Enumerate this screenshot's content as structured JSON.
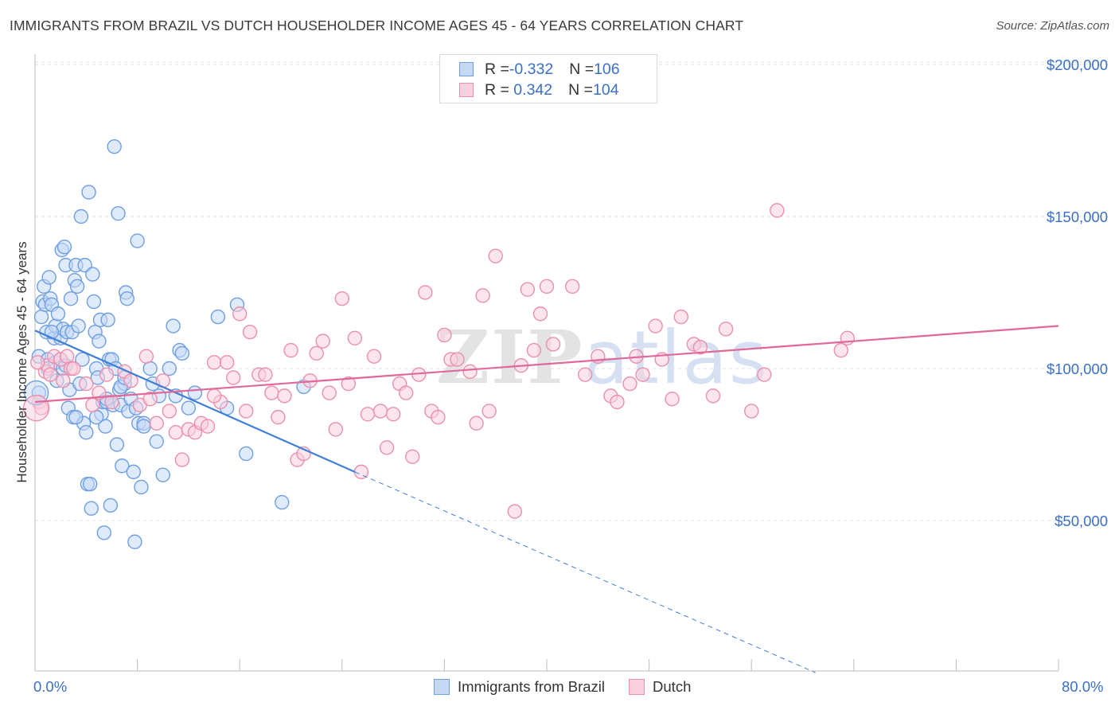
{
  "title": "IMMIGRANTS FROM BRAZIL VS DUTCH HOUSEHOLDER INCOME AGES 45 - 64 YEARS CORRELATION CHART",
  "source": "Source: ZipAtlas.com",
  "watermark": {
    "zip": "ZIP",
    "atlas": "atlas"
  },
  "legend": {
    "rows": [
      {
        "r_label": "R = ",
        "r_value": "-0.332",
        "n_label": "N = ",
        "n_value": "106",
        "color": "#6f9fe0",
        "fill": "#c5d9f5"
      },
      {
        "r_label": "R = ",
        "r_value": " 0.342",
        "n_label": "N = ",
        "n_value": "104",
        "color": "#ea8fae",
        "fill": "#f9d0de"
      }
    ]
  },
  "bottom_legend": [
    {
      "label": "Immigrants from Brazil",
      "color": "#6f9fe0",
      "fill": "#c5d9f5"
    },
    {
      "label": "Dutch",
      "color": "#ea8fae",
      "fill": "#f9d0de"
    }
  ],
  "chart_data": {
    "type": "scatter",
    "title": "IMMIGRANTS FROM BRAZIL VS DUTCH HOUSEHOLDER INCOME AGES 45 - 64 YEARS CORRELATION CHART",
    "xlabel": "",
    "ylabel": "Householder Income Ages 45 - 64 years",
    "xlim": [
      0,
      80
    ],
    "ylim": [
      0,
      210000
    ],
    "x_tick_labels": {
      "left": "0.0%",
      "right": "80.0%"
    },
    "y_ticks": [
      {
        "value": 50000,
        "label": "$50,000"
      },
      {
        "value": 100000,
        "label": "$100,000"
      },
      {
        "value": 150000,
        "label": "$150,000"
      },
      {
        "value": 200000,
        "label": "$200,000"
      }
    ],
    "grid": "horizontal dashed",
    "legend_placement": "top-center",
    "series": [
      {
        "name": "Immigrants from Brazil",
        "color": "#3f7fd6",
        "fill": "#c5d9f5",
        "stroke": "#6f9fe0",
        "trend": {
          "x0": 0,
          "y0": 112500,
          "x1": 25,
          "y1": 66000,
          "dash_to_x": 61,
          "dash_to_y": 0
        },
        "points": [
          [
            0.3,
            104000
          ],
          [
            0.3,
            92000
          ],
          [
            0.5,
            117000
          ],
          [
            0.6,
            122000
          ],
          [
            0.7,
            127000
          ],
          [
            0.8,
            121000
          ],
          [
            0.9,
            112000
          ],
          [
            1.0,
            103000
          ],
          [
            1.0,
            100000
          ],
          [
            1.1,
            130000
          ],
          [
            1.2,
            123000
          ],
          [
            1.3,
            121000
          ],
          [
            1.5,
            110000
          ],
          [
            1.6,
            114000
          ],
          [
            1.6,
            102000
          ],
          [
            1.7,
            96000
          ],
          [
            1.8,
            118000
          ],
          [
            2.0,
            110000
          ],
          [
            2.0,
            103000
          ],
          [
            2.1,
            139000
          ],
          [
            2.2,
            113000
          ],
          [
            2.2,
            100000
          ],
          [
            2.3,
            140000
          ],
          [
            2.4,
            134000
          ],
          [
            2.5,
            112000
          ],
          [
            2.6,
            87000
          ],
          [
            2.7,
            93000
          ],
          [
            2.8,
            123000
          ],
          [
            2.9,
            112000
          ],
          [
            3.0,
            84000
          ],
          [
            3.1,
            129000
          ],
          [
            3.2,
            134000
          ],
          [
            3.3,
            127000
          ],
          [
            3.4,
            114000
          ],
          [
            3.5,
            95000
          ],
          [
            3.6,
            150000
          ],
          [
            3.7,
            103000
          ],
          [
            3.8,
            82000
          ],
          [
            3.9,
            134000
          ],
          [
            4.0,
            79000
          ],
          [
            4.1,
            62000
          ],
          [
            4.2,
            158000
          ],
          [
            4.3,
            62000
          ],
          [
            4.4,
            54000
          ],
          [
            4.5,
            131000
          ],
          [
            4.6,
            122000
          ],
          [
            4.7,
            112000
          ],
          [
            4.8,
            100000
          ],
          [
            4.9,
            97000
          ],
          [
            5.0,
            109000
          ],
          [
            5.1,
            116000
          ],
          [
            5.2,
            85000
          ],
          [
            5.3,
            89000
          ],
          [
            5.4,
            46000
          ],
          [
            5.5,
            81000
          ],
          [
            5.6,
            89000
          ],
          [
            5.7,
            116000
          ],
          [
            5.8,
            103000
          ],
          [
            5.9,
            55000
          ],
          [
            6.0,
            103000
          ],
          [
            6.1,
            88000
          ],
          [
            6.2,
            173000
          ],
          [
            6.3,
            100000
          ],
          [
            6.4,
            75000
          ],
          [
            6.5,
            151000
          ],
          [
            6.6,
            93000
          ],
          [
            6.7,
            88000
          ],
          [
            6.8,
            68000
          ],
          [
            7.0,
            95000
          ],
          [
            7.1,
            125000
          ],
          [
            7.2,
            123000
          ],
          [
            7.3,
            86000
          ],
          [
            7.5,
            90000
          ],
          [
            7.7,
            66000
          ],
          [
            7.8,
            43000
          ],
          [
            7.9,
            87000
          ],
          [
            8.0,
            142000
          ],
          [
            8.1,
            82000
          ],
          [
            8.3,
            61000
          ],
          [
            8.5,
            82000
          ],
          [
            9.0,
            100000
          ],
          [
            9.2,
            95000
          ],
          [
            9.5,
            76000
          ],
          [
            9.7,
            91000
          ],
          [
            10.0,
            65000
          ],
          [
            10.5,
            100000
          ],
          [
            10.8,
            114000
          ],
          [
            11.0,
            91000
          ],
          [
            11.3,
            106000
          ],
          [
            11.5,
            105000
          ],
          [
            12.0,
            87000
          ],
          [
            12.5,
            92000
          ],
          [
            14.3,
            117000
          ],
          [
            15.0,
            87000
          ],
          [
            15.8,
            121000
          ],
          [
            16.5,
            72000
          ],
          [
            19.3,
            56000
          ],
          [
            21.0,
            94000
          ],
          [
            3.2,
            84000
          ],
          [
            2.4,
            101000
          ],
          [
            1.3,
            112000
          ],
          [
            4.8,
            84000
          ],
          [
            6.7,
            94000
          ],
          [
            8.5,
            81000
          ],
          [
            7.0,
            97000
          ],
          [
            5.6,
            90000
          ]
        ]
      },
      {
        "name": "Dutch",
        "color": "#e0699a",
        "fill": "#f9d0de",
        "stroke": "#ea8fae",
        "trend": {
          "x0": 0,
          "y0": 89000,
          "x1": 80,
          "y1": 114000
        },
        "points": [
          [
            0.3,
            89000
          ],
          [
            0.5,
            87000
          ],
          [
            0.8,
            99000
          ],
          [
            1.0,
            101000
          ],
          [
            1.5,
            104000
          ],
          [
            2.0,
            103000
          ],
          [
            2.5,
            104000
          ],
          [
            2.8,
            100000
          ],
          [
            3.0,
            100000
          ],
          [
            4.0,
            95000
          ],
          [
            4.5,
            88000
          ],
          [
            5.0,
            92000
          ],
          [
            5.6,
            98000
          ],
          [
            6.0,
            89000
          ],
          [
            7.0,
            99000
          ],
          [
            7.5,
            96000
          ],
          [
            8.2,
            88000
          ],
          [
            8.7,
            104000
          ],
          [
            9.0,
            90000
          ],
          [
            9.5,
            82000
          ],
          [
            10.0,
            96000
          ],
          [
            10.5,
            86000
          ],
          [
            11.0,
            79000
          ],
          [
            11.5,
            70000
          ],
          [
            12.0,
            80000
          ],
          [
            12.5,
            79000
          ],
          [
            13.0,
            82000
          ],
          [
            13.5,
            81000
          ],
          [
            14.0,
            102000
          ],
          [
            14.5,
            89000
          ],
          [
            15.0,
            102000
          ],
          [
            15.5,
            97000
          ],
          [
            16.0,
            118000
          ],
          [
            16.5,
            86000
          ],
          [
            16.8,
            112000
          ],
          [
            17.5,
            98000
          ],
          [
            18.0,
            98000
          ],
          [
            18.5,
            92000
          ],
          [
            19.0,
            84000
          ],
          [
            19.5,
            91000
          ],
          [
            20.0,
            106000
          ],
          [
            20.5,
            70000
          ],
          [
            21.0,
            72000
          ],
          [
            21.5,
            96000
          ],
          [
            22.0,
            105000
          ],
          [
            22.5,
            109000
          ],
          [
            23.0,
            92000
          ],
          [
            23.5,
            80000
          ],
          [
            24.0,
            123000
          ],
          [
            24.5,
            95000
          ],
          [
            25.0,
            110000
          ],
          [
            25.5,
            66000
          ],
          [
            26.0,
            85000
          ],
          [
            26.5,
            104000
          ],
          [
            27.0,
            86000
          ],
          [
            27.5,
            74000
          ],
          [
            28.0,
            85000
          ],
          [
            28.5,
            95000
          ],
          [
            29.0,
            92000
          ],
          [
            29.5,
            71000
          ],
          [
            30.0,
            98000
          ],
          [
            30.5,
            125000
          ],
          [
            31.0,
            86000
          ],
          [
            31.5,
            84000
          ],
          [
            32.0,
            111000
          ],
          [
            32.5,
            103000
          ],
          [
            33.0,
            103000
          ],
          [
            34.0,
            99000
          ],
          [
            34.5,
            82000
          ],
          [
            35.0,
            124000
          ],
          [
            35.5,
            86000
          ],
          [
            36.0,
            137000
          ],
          [
            37.5,
            53000
          ],
          [
            38.0,
            101000
          ],
          [
            38.5,
            126000
          ],
          [
            39.0,
            106000
          ],
          [
            39.5,
            118000
          ],
          [
            40.0,
            127000
          ],
          [
            40.5,
            108000
          ],
          [
            42.0,
            127000
          ],
          [
            43.0,
            98000
          ],
          [
            44.0,
            104000
          ],
          [
            45.0,
            91000
          ],
          [
            45.5,
            89000
          ],
          [
            46.5,
            95000
          ],
          [
            47.0,
            104000
          ],
          [
            47.5,
            98000
          ],
          [
            48.5,
            114000
          ],
          [
            49.0,
            103000
          ],
          [
            49.8,
            90000
          ],
          [
            50.5,
            117000
          ],
          [
            51.5,
            108000
          ],
          [
            52.0,
            107000
          ],
          [
            53.0,
            91000
          ],
          [
            54.0,
            113000
          ],
          [
            56.0,
            86000
          ],
          [
            57.0,
            98000
          ],
          [
            58.0,
            152000
          ],
          [
            63.0,
            106000
          ],
          [
            63.5,
            110000
          ],
          [
            0.2,
            102000
          ],
          [
            1.2,
            98000
          ],
          [
            2.2,
            96000
          ],
          [
            14.0,
            91000
          ]
        ]
      }
    ]
  }
}
